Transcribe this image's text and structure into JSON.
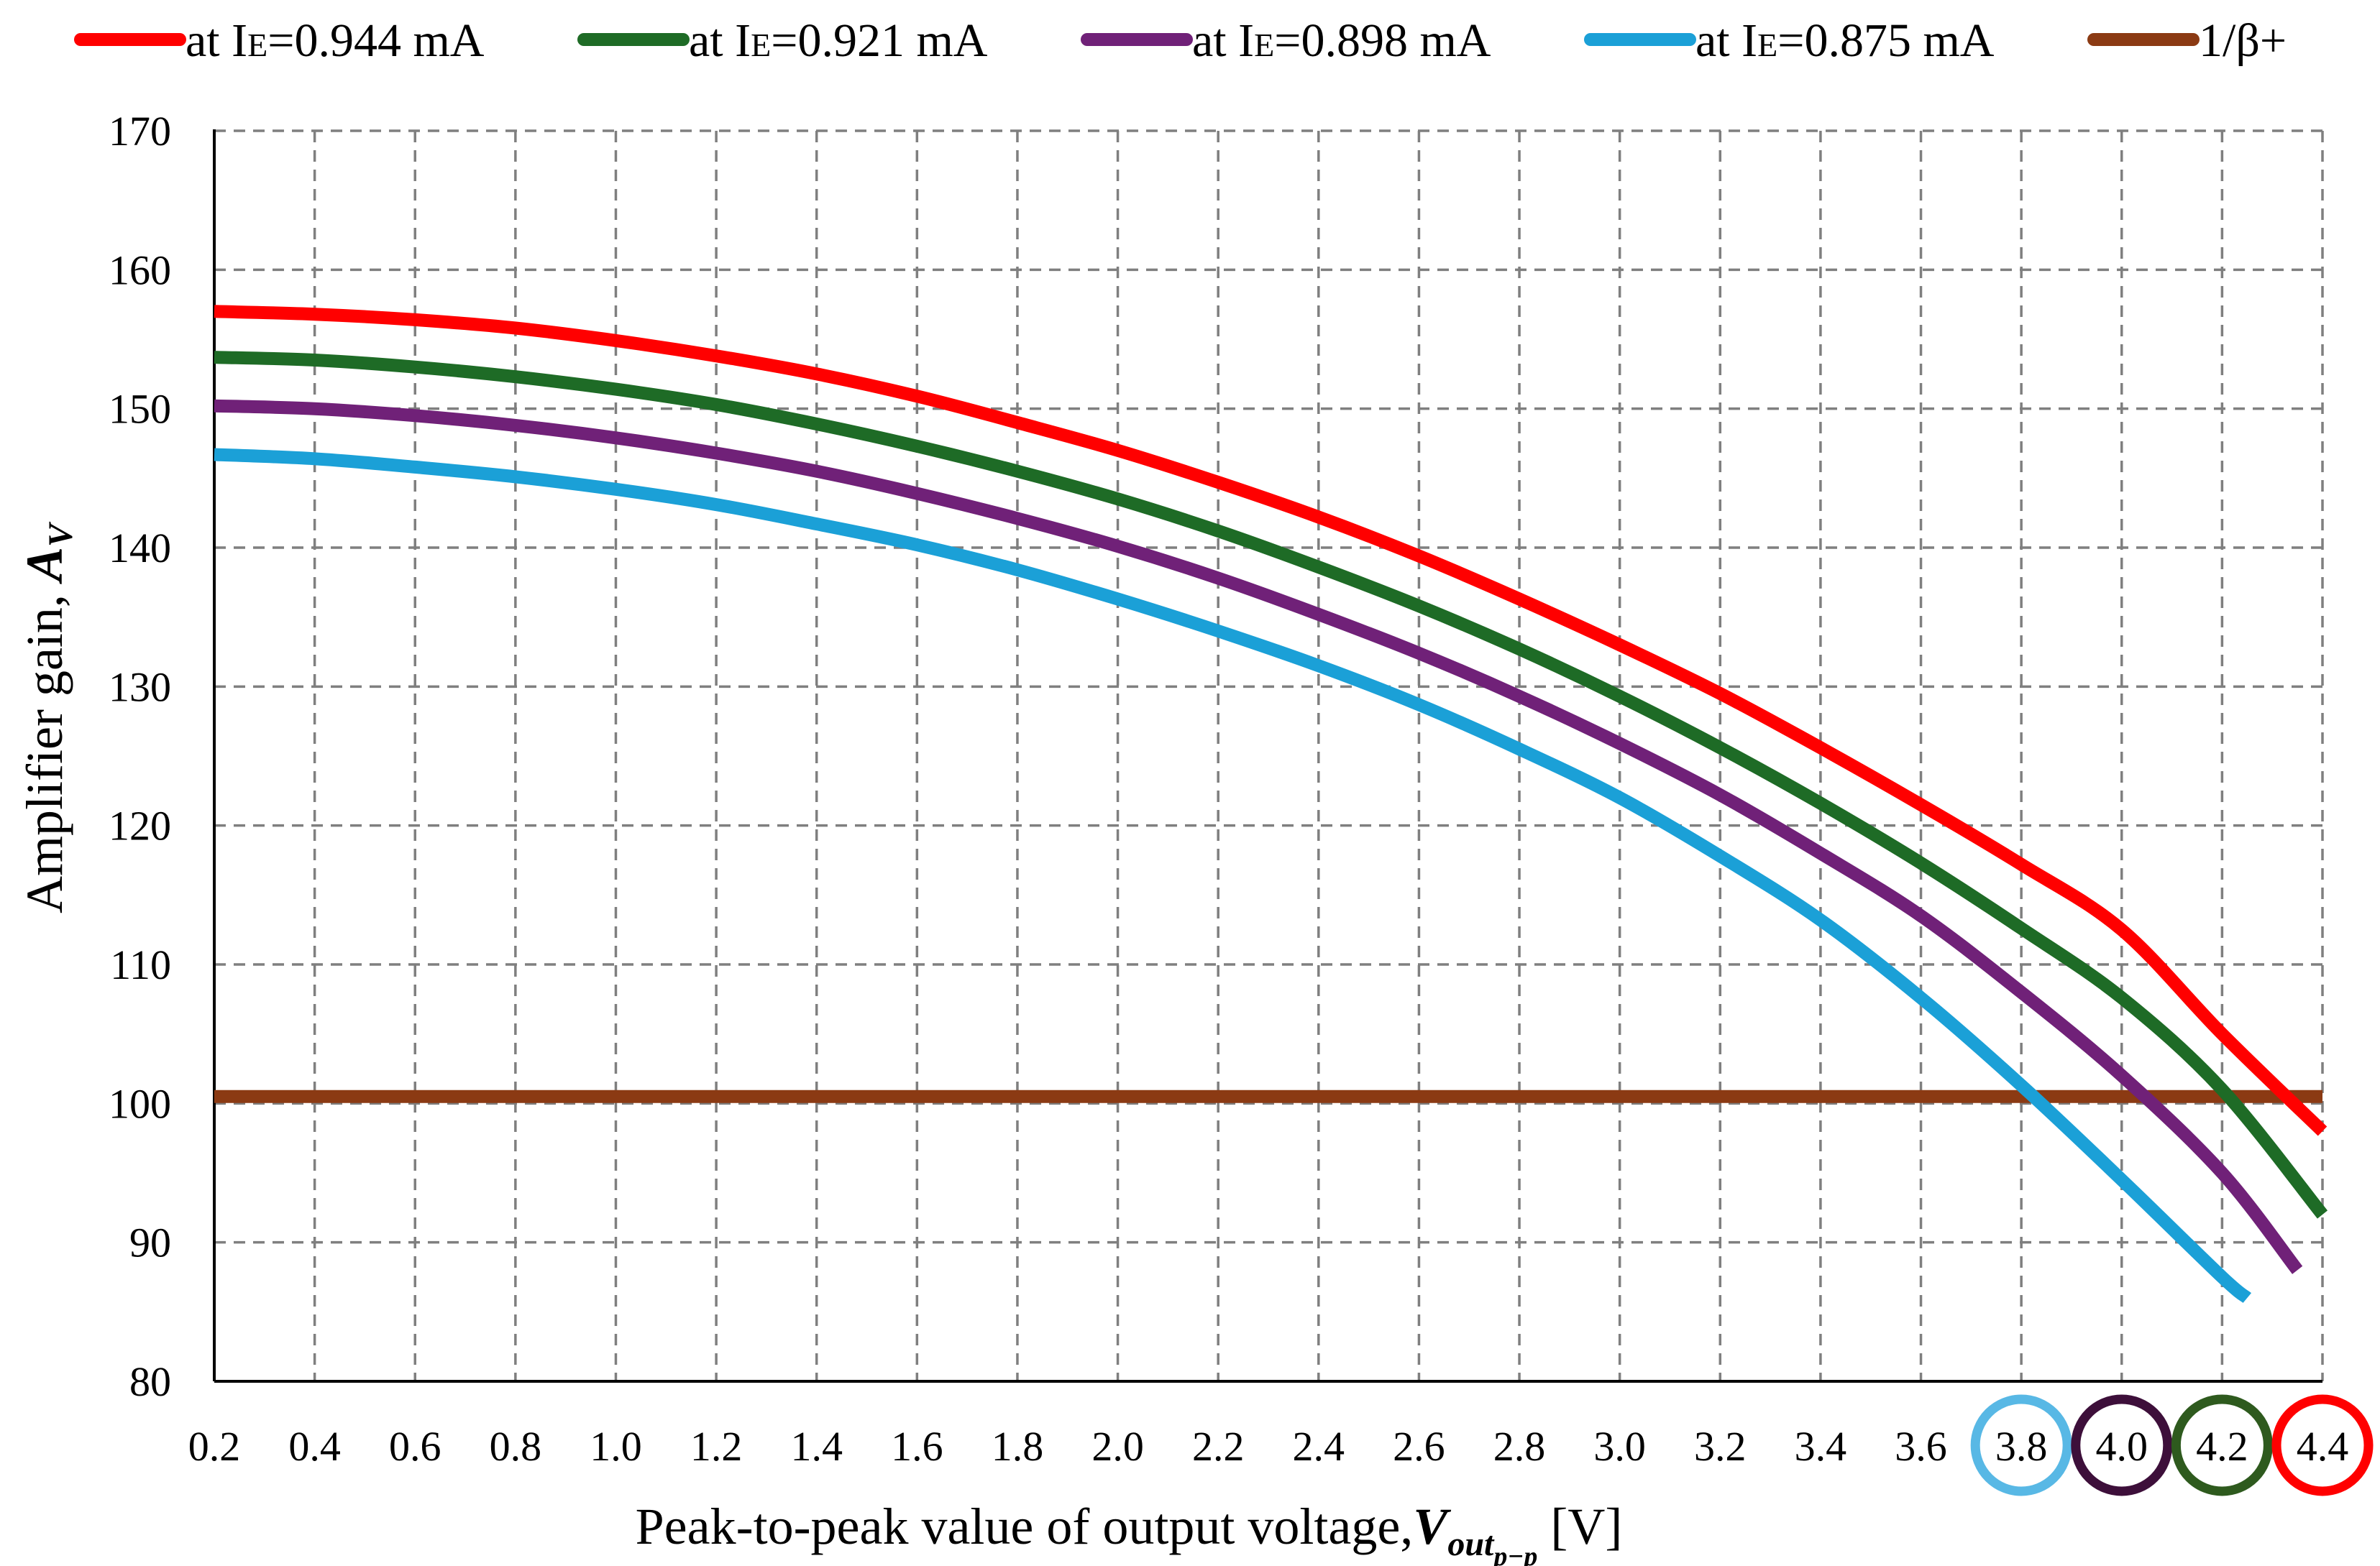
{
  "chart_data": {
    "type": "line",
    "xlabel_prefix": "Peak-to-peak value of output voltage,",
    "xlabel_var": "V",
    "xlabel_sub1": "out",
    "xlabel_sub2": "p−p",
    "xlabel_suffix": " [V]",
    "ylabel_prefix": "Amplifier gain, ",
    "ylabel_var": "A",
    "ylabel_sub": "V",
    "xlim": [
      0.2,
      4.4
    ],
    "ylim": [
      80,
      170
    ],
    "x_ticks": [
      "0.2",
      "0.4",
      "0.6",
      "0.8",
      "1.0",
      "1.2",
      "1.4",
      "1.6",
      "1.8",
      "2.0",
      "2.2",
      "2.4",
      "2.6",
      "2.8",
      "3.0",
      "3.2",
      "3.4",
      "3.6",
      "3.8",
      "4.0",
      "4.2",
      "4.4"
    ],
    "y_ticks": [
      "80",
      "90",
      "100",
      "110",
      "120",
      "130",
      "140",
      "150",
      "160",
      "170"
    ],
    "grid": true,
    "legend_position": "top",
    "series": [
      {
        "name_prefix": "at I",
        "name_sub": "E",
        "name_suffix": "=0.944 mA",
        "color": "#ff0000",
        "x": [
          0.2,
          0.4,
          0.6,
          0.8,
          1.0,
          1.2,
          1.4,
          1.6,
          1.8,
          2.0,
          2.2,
          2.4,
          2.6,
          2.8,
          3.0,
          3.2,
          3.4,
          3.6,
          3.8,
          4.0,
          4.2,
          4.4
        ],
        "y": [
          157.0,
          156.8,
          156.4,
          155.8,
          154.9,
          153.8,
          152.5,
          150.9,
          149.0,
          147.0,
          144.7,
          142.2,
          139.4,
          136.3,
          133.0,
          129.5,
          125.6,
          121.5,
          117.2,
          112.5,
          105.0,
          98.0
        ]
      },
      {
        "name_prefix": "at I",
        "name_sub": "E",
        "name_suffix": "=0.921 mA",
        "color": "#1e6b26",
        "x": [
          0.2,
          0.4,
          0.6,
          0.8,
          1.0,
          1.2,
          1.4,
          1.6,
          1.8,
          2.0,
          2.2,
          2.4,
          2.6,
          2.8,
          3.0,
          3.2,
          3.4,
          3.6,
          3.8,
          4.0,
          4.2,
          4.4
        ],
        "y": [
          153.7,
          153.5,
          153.0,
          152.3,
          151.4,
          150.3,
          148.9,
          147.3,
          145.5,
          143.5,
          141.2,
          138.6,
          135.8,
          132.7,
          129.3,
          125.6,
          121.6,
          117.3,
          112.6,
          107.6,
          101.0,
          92.0
        ]
      },
      {
        "name_prefix": "at I",
        "name_sub": "E",
        "name_suffix": "=0.898 mA",
        "color": "#702178",
        "x": [
          0.2,
          0.4,
          0.6,
          0.8,
          1.0,
          1.2,
          1.4,
          1.6,
          1.8,
          2.0,
          2.2,
          2.4,
          2.6,
          2.8,
          3.0,
          3.2,
          3.4,
          3.6,
          3.8,
          4.0,
          4.2,
          4.35
        ],
        "y": [
          150.2,
          150.0,
          149.5,
          148.8,
          147.9,
          146.8,
          145.5,
          143.9,
          142.1,
          140.1,
          137.8,
          135.2,
          132.4,
          129.3,
          125.9,
          122.2,
          118.0,
          113.5,
          108.0,
          102.0,
          95.0,
          88.0
        ]
      },
      {
        "name_prefix": "at I",
        "name_sub": "E",
        "name_suffix": "=0.875 mA",
        "color": "#1ba0d7",
        "x": [
          0.2,
          0.4,
          0.6,
          0.8,
          1.0,
          1.2,
          1.4,
          1.6,
          1.8,
          2.0,
          2.2,
          2.4,
          2.6,
          2.8,
          3.0,
          3.2,
          3.4,
          3.6,
          3.8,
          4.0,
          4.2,
          4.25
        ],
        "y": [
          146.7,
          146.4,
          145.8,
          145.1,
          144.2,
          143.1,
          141.7,
          140.2,
          138.4,
          136.3,
          134.0,
          131.5,
          128.7,
          125.5,
          122.0,
          117.8,
          113.2,
          107.6,
          101.3,
          94.5,
          87.5,
          86.0
        ]
      },
      {
        "name_prefix": "1/β+",
        "name_sub": "",
        "name_suffix": "",
        "color": "#8b3a13",
        "x": [
          0.2,
          4.4
        ],
        "y": [
          100.5,
          100.5
        ]
      }
    ],
    "annotations": [
      {
        "x": 3.8,
        "color": "#58b8e5"
      },
      {
        "x": 4.0,
        "color": "#3d0f3a"
      },
      {
        "x": 4.2,
        "color": "#2e5a1e"
      },
      {
        "x": 4.4,
        "color": "#ff0000"
      }
    ]
  }
}
